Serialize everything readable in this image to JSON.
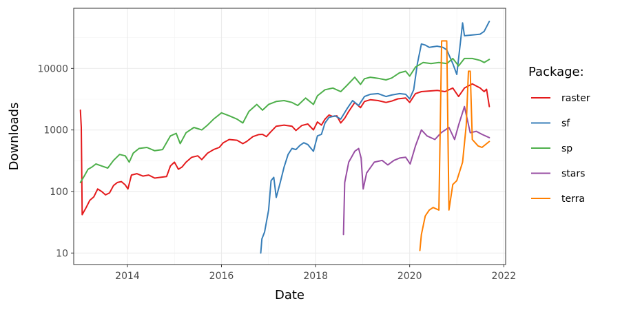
{
  "chart_data": {
    "type": "line",
    "xlabel": "Date",
    "ylabel": "Downloads",
    "y_scale": "log10",
    "xlim": [
      "2012-11-10",
      "2022-01-15"
    ],
    "ylim": [
      6.5,
      95000
    ],
    "x_ticks": [
      {
        "date": "2014-01-01",
        "label": "2014"
      },
      {
        "date": "2016-01-01",
        "label": "2016"
      },
      {
        "date": "2018-01-01",
        "label": "2018"
      },
      {
        "date": "2020-01-01",
        "label": "2020"
      },
      {
        "date": "2022-01-01",
        "label": "2022"
      }
    ],
    "y_ticks": [
      {
        "value": 10,
        "label": "10"
      },
      {
        "value": 100,
        "label": "100"
      },
      {
        "value": 1000,
        "label": "1000"
      },
      {
        "value": 10000,
        "label": "10000"
      }
    ],
    "grid": true,
    "legend": {
      "title": "Package:",
      "position": "right"
    },
    "series": [
      {
        "name": "raster",
        "color": "#E41A1C",
        "points": [
          [
            "2013-01-01",
            2100
          ],
          [
            "2013-01-08",
            1100
          ],
          [
            "2013-01-15",
            42
          ],
          [
            "2013-02-15",
            55
          ],
          [
            "2013-03-15",
            72
          ],
          [
            "2013-04-15",
            82
          ],
          [
            "2013-05-15",
            110
          ],
          [
            "2013-06-15",
            100
          ],
          [
            "2013-07-15",
            88
          ],
          [
            "2013-08-15",
            95
          ],
          [
            "2013-09-15",
            125
          ],
          [
            "2013-10-15",
            140
          ],
          [
            "2013-11-15",
            145
          ],
          [
            "2013-12-15",
            128
          ],
          [
            "2014-01-05",
            110
          ],
          [
            "2014-02-01",
            185
          ],
          [
            "2014-03-15",
            195
          ],
          [
            "2014-05-01",
            178
          ],
          [
            "2014-06-15",
            185
          ],
          [
            "2014-08-01",
            165
          ],
          [
            "2014-09-15",
            170
          ],
          [
            "2014-11-01",
            175
          ],
          [
            "2014-12-01",
            260
          ],
          [
            "2015-01-01",
            300
          ],
          [
            "2015-02-01",
            230
          ],
          [
            "2015-03-01",
            250
          ],
          [
            "2015-04-01",
            300
          ],
          [
            "2015-05-15",
            360
          ],
          [
            "2015-07-01",
            380
          ],
          [
            "2015-08-01",
            330
          ],
          [
            "2015-09-15",
            420
          ],
          [
            "2015-11-01",
            480
          ],
          [
            "2015-12-15",
            520
          ],
          [
            "2016-01-15",
            620
          ],
          [
            "2016-03-01",
            700
          ],
          [
            "2016-05-01",
            680
          ],
          [
            "2016-06-15",
            600
          ],
          [
            "2016-07-15",
            650
          ],
          [
            "2016-09-01",
            780
          ],
          [
            "2016-10-15",
            840
          ],
          [
            "2016-11-15",
            850
          ],
          [
            "2016-12-15",
            780
          ],
          [
            "2017-01-15",
            920
          ],
          [
            "2017-03-01",
            1150
          ],
          [
            "2017-05-01",
            1200
          ],
          [
            "2017-07-01",
            1150
          ],
          [
            "2017-08-01",
            980
          ],
          [
            "2017-09-15",
            1180
          ],
          [
            "2017-11-01",
            1250
          ],
          [
            "2017-12-15",
            1000
          ],
          [
            "2018-01-15",
            1350
          ],
          [
            "2018-02-15",
            1200
          ],
          [
            "2018-03-15",
            1500
          ],
          [
            "2018-04-15",
            1750
          ],
          [
            "2018-05-15",
            1650
          ],
          [
            "2018-06-15",
            1700
          ],
          [
            "2018-07-15",
            1300
          ],
          [
            "2018-08-15",
            1550
          ],
          [
            "2018-09-15",
            2000
          ],
          [
            "2018-11-01",
            2800
          ],
          [
            "2018-12-15",
            2300
          ],
          [
            "2019-01-15",
            2900
          ],
          [
            "2019-03-01",
            3100
          ],
          [
            "2019-05-01",
            3000
          ],
          [
            "2019-07-01",
            2800
          ],
          [
            "2019-08-15",
            2950
          ],
          [
            "2019-10-01",
            3200
          ],
          [
            "2019-12-01",
            3300
          ],
          [
            "2020-01-01",
            2800
          ],
          [
            "2020-02-15",
            3900
          ],
          [
            "2020-04-01",
            4200
          ],
          [
            "2020-06-01",
            4300
          ],
          [
            "2020-08-01",
            4400
          ],
          [
            "2020-10-01",
            4200
          ],
          [
            "2020-12-01",
            4800
          ],
          [
            "2021-01-15",
            3500
          ],
          [
            "2021-03-01",
            4800
          ],
          [
            "2021-05-01",
            5600
          ],
          [
            "2021-07-01",
            4800
          ],
          [
            "2021-08-01",
            4200
          ],
          [
            "2021-08-20",
            4600
          ],
          [
            "2021-09-10",
            2400
          ]
        ]
      },
      {
        "name": "sf",
        "color": "#377EB8",
        "points": [
          [
            "2016-11-01",
            10
          ],
          [
            "2016-11-10",
            17
          ],
          [
            "2016-12-01",
            22
          ],
          [
            "2017-01-01",
            50
          ],
          [
            "2017-01-20",
            150
          ],
          [
            "2017-02-10",
            170
          ],
          [
            "2017-03-01",
            80
          ],
          [
            "2017-04-01",
            140
          ],
          [
            "2017-05-01",
            250
          ],
          [
            "2017-06-01",
            400
          ],
          [
            "2017-07-01",
            500
          ],
          [
            "2017-08-01",
            480
          ],
          [
            "2017-09-01",
            560
          ],
          [
            "2017-10-01",
            620
          ],
          [
            "2017-11-01",
            580
          ],
          [
            "2017-12-15",
            450
          ],
          [
            "2018-01-15",
            800
          ],
          [
            "2018-02-15",
            850
          ],
          [
            "2018-03-15",
            1300
          ],
          [
            "2018-04-15",
            1600
          ],
          [
            "2018-06-01",
            1700
          ],
          [
            "2018-07-15",
            1500
          ],
          [
            "2018-09-01",
            2200
          ],
          [
            "2018-10-15",
            3000
          ],
          [
            "2018-12-01",
            2500
          ],
          [
            "2019-01-15",
            3500
          ],
          [
            "2019-03-01",
            3800
          ],
          [
            "2019-05-01",
            3900
          ],
          [
            "2019-07-01",
            3500
          ],
          [
            "2019-08-15",
            3700
          ],
          [
            "2019-10-15",
            3900
          ],
          [
            "2019-12-01",
            3800
          ],
          [
            "2020-01-01",
            3200
          ],
          [
            "2020-02-01",
            4500
          ],
          [
            "2020-03-01",
            12000
          ],
          [
            "2020-04-01",
            25000
          ],
          [
            "2020-05-01",
            24000
          ],
          [
            "2020-06-01",
            22000
          ],
          [
            "2020-08-01",
            23000
          ],
          [
            "2020-09-15",
            22000
          ],
          [
            "2020-10-15",
            20000
          ],
          [
            "2020-12-01",
            12000
          ],
          [
            "2021-01-01",
            8000
          ],
          [
            "2021-02-01",
            30000
          ],
          [
            "2021-02-15",
            55000
          ],
          [
            "2021-03-01",
            34000
          ],
          [
            "2021-05-01",
            35000
          ],
          [
            "2021-07-01",
            36000
          ],
          [
            "2021-08-01",
            40000
          ],
          [
            "2021-09-10",
            58000
          ]
        ]
      },
      {
        "name": "sp",
        "color": "#4DAF4A",
        "points": [
          [
            "2013-01-01",
            140
          ],
          [
            "2013-02-01",
            180
          ],
          [
            "2013-03-01",
            230
          ],
          [
            "2013-04-01",
            250
          ],
          [
            "2013-05-01",
            280
          ],
          [
            "2013-06-15",
            260
          ],
          [
            "2013-08-01",
            240
          ],
          [
            "2013-09-15",
            320
          ],
          [
            "2013-11-01",
            400
          ],
          [
            "2013-12-15",
            380
          ],
          [
            "2014-01-15",
            300
          ],
          [
            "2014-02-15",
            420
          ],
          [
            "2014-04-01",
            500
          ],
          [
            "2014-06-01",
            520
          ],
          [
            "2014-08-01",
            460
          ],
          [
            "2014-10-01",
            480
          ],
          [
            "2014-12-01",
            800
          ],
          [
            "2015-01-15",
            880
          ],
          [
            "2015-02-15",
            600
          ],
          [
            "2015-04-01",
            900
          ],
          [
            "2015-06-01",
            1100
          ],
          [
            "2015-08-01",
            1000
          ],
          [
            "2015-09-15",
            1200
          ],
          [
            "2015-11-01",
            1500
          ],
          [
            "2016-01-01",
            1900
          ],
          [
            "2016-03-01",
            1700
          ],
          [
            "2016-05-01",
            1500
          ],
          [
            "2016-06-15",
            1300
          ],
          [
            "2016-08-01",
            2000
          ],
          [
            "2016-10-01",
            2600
          ],
          [
            "2016-11-15",
            2100
          ],
          [
            "2017-01-01",
            2600
          ],
          [
            "2017-03-01",
            2900
          ],
          [
            "2017-05-01",
            3000
          ],
          [
            "2017-07-01",
            2800
          ],
          [
            "2017-08-15",
            2500
          ],
          [
            "2017-10-15",
            3300
          ],
          [
            "2017-12-15",
            2600
          ],
          [
            "2018-01-15",
            3600
          ],
          [
            "2018-03-15",
            4500
          ],
          [
            "2018-05-15",
            4800
          ],
          [
            "2018-07-15",
            4200
          ],
          [
            "2018-09-01",
            5300
          ],
          [
            "2018-11-01",
            7200
          ],
          [
            "2018-12-15",
            5500
          ],
          [
            "2019-01-15",
            6800
          ],
          [
            "2019-03-01",
            7200
          ],
          [
            "2019-05-01",
            6900
          ],
          [
            "2019-07-01",
            6500
          ],
          [
            "2019-08-15",
            7000
          ],
          [
            "2019-10-15",
            8500
          ],
          [
            "2019-12-01",
            9000
          ],
          [
            "2020-01-01",
            7500
          ],
          [
            "2020-02-15",
            10500
          ],
          [
            "2020-04-15",
            12500
          ],
          [
            "2020-06-15",
            12000
          ],
          [
            "2020-08-15",
            12500
          ],
          [
            "2020-10-15",
            12000
          ],
          [
            "2020-12-01",
            14500
          ],
          [
            "2021-01-15",
            11000
          ],
          [
            "2021-03-01",
            14500
          ],
          [
            "2021-05-01",
            14500
          ],
          [
            "2021-07-01",
            13500
          ],
          [
            "2021-08-01",
            12500
          ],
          [
            "2021-09-10",
            14000
          ]
        ]
      },
      {
        "name": "stars",
        "color": "#984EA3",
        "points": [
          [
            "2018-08-05",
            20
          ],
          [
            "2018-08-15",
            140
          ],
          [
            "2018-09-15",
            300
          ],
          [
            "2018-11-01",
            450
          ],
          [
            "2018-12-01",
            500
          ],
          [
            "2018-12-20",
            350
          ],
          [
            "2019-01-05",
            110
          ],
          [
            "2019-02-01",
            200
          ],
          [
            "2019-04-01",
            300
          ],
          [
            "2019-06-01",
            320
          ],
          [
            "2019-07-15",
            270
          ],
          [
            "2019-09-01",
            320
          ],
          [
            "2019-10-15",
            350
          ],
          [
            "2019-12-01",
            360
          ],
          [
            "2020-01-05",
            280
          ],
          [
            "2020-02-15",
            550
          ],
          [
            "2020-04-01",
            1000
          ],
          [
            "2020-05-15",
            800
          ],
          [
            "2020-07-15",
            700
          ],
          [
            "2020-09-01",
            900
          ],
          [
            "2020-11-01",
            1100
          ],
          [
            "2020-12-15",
            700
          ],
          [
            "2021-01-15",
            1200
          ],
          [
            "2021-03-01",
            2400
          ],
          [
            "2021-04-15",
            900
          ],
          [
            "2021-06-01",
            950
          ],
          [
            "2021-07-15",
            850
          ],
          [
            "2021-09-10",
            750
          ]
        ]
      },
      {
        "name": "terra",
        "color": "#FF7F00",
        "points": [
          [
            "2020-03-20",
            11
          ],
          [
            "2020-04-01",
            20
          ],
          [
            "2020-05-01",
            40
          ],
          [
            "2020-06-01",
            50
          ],
          [
            "2020-07-01",
            55
          ],
          [
            "2020-08-15",
            50
          ],
          [
            "2020-09-05",
            28000
          ],
          [
            "2020-10-15",
            28000
          ],
          [
            "2020-11-01",
            50
          ],
          [
            "2020-12-01",
            130
          ],
          [
            "2021-01-01",
            150
          ],
          [
            "2021-02-15",
            300
          ],
          [
            "2021-03-15",
            1200
          ],
          [
            "2021-04-01",
            9000
          ],
          [
            "2021-04-15",
            9000
          ],
          [
            "2021-05-01",
            700
          ],
          [
            "2021-06-15",
            550
          ],
          [
            "2021-07-15",
            520
          ],
          [
            "2021-09-10",
            650
          ]
        ]
      }
    ]
  }
}
